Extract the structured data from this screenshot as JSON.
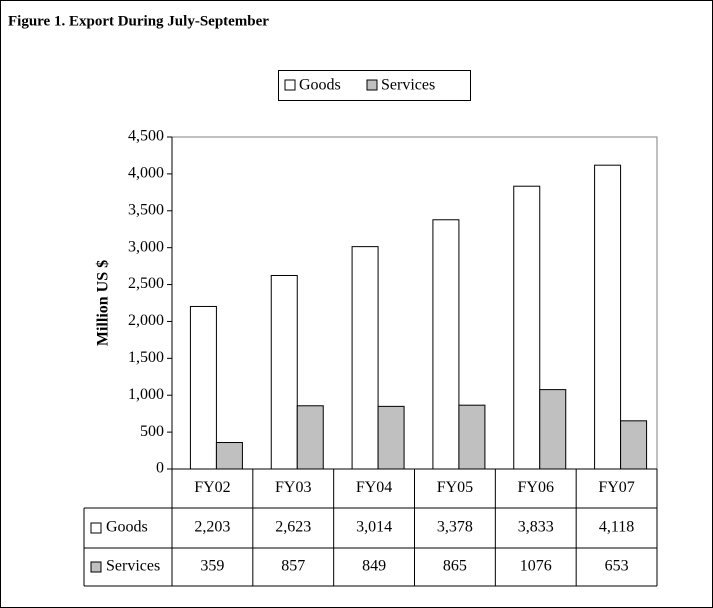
{
  "chart_data": {
    "type": "bar",
    "title": "Figure 1. Export During July-September",
    "y_label": "Million US $",
    "categories": [
      "FY02",
      "FY03",
      "FY04",
      "FY05",
      "FY06",
      "FY07"
    ],
    "series": [
      {
        "name": "Goods",
        "color": "#ffffff",
        "values": [
          2203,
          2623,
          3014,
          3378,
          3833,
          4118
        ],
        "value_labels": [
          "2,203",
          "2,623",
          "3,014",
          "3,378",
          "3,833",
          "4,118"
        ]
      },
      {
        "name": "Services",
        "color": "#c0c0c0",
        "values": [
          359,
          857,
          849,
          865,
          1076,
          653
        ]
      }
    ],
    "ylim": [
      0,
      4500
    ],
    "yticks": [
      0,
      500,
      {
        "value": 1000,
        "label": "1,000"
      },
      {
        "value": 1500,
        "label": "1,500"
      },
      {
        "value": 2000,
        "label": "2,000"
      },
      {
        "value": 2500,
        "label": "2,500"
      },
      {
        "value": 3000,
        "label": "3,000"
      },
      {
        "value": 3500,
        "label": "3,500"
      },
      {
        "value": 4000,
        "label": "4,000"
      },
      {
        "value": 4500,
        "label": "4,500"
      }
    ],
    "legend": "top"
  }
}
